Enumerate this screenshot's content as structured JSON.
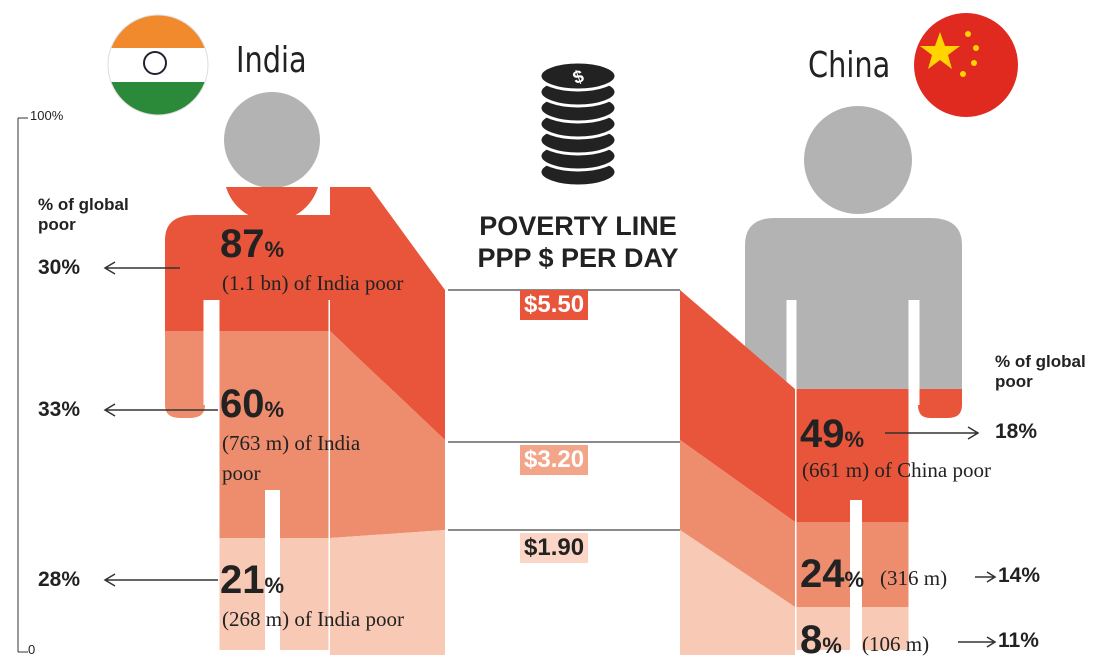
{
  "axis": {
    "top": "100%",
    "bottom": "0"
  },
  "unit": "%",
  "global_label": "% of global poor",
  "center": {
    "heading": [
      "POVERTY LINE",
      "PPP $ PER DAY"
    ],
    "lines": [
      "$5.50",
      "$3.20",
      "$1.90"
    ]
  },
  "india": {
    "name": "India",
    "levels": [
      {
        "share": "87",
        "detail": "(1.1 bn) of India poor",
        "global": "30%"
      },
      {
        "share": "60",
        "detail": "(763 m) of India poor",
        "global": "33%"
      },
      {
        "share": "21",
        "detail": "(268 m) of India poor",
        "global": "28%"
      }
    ]
  },
  "china": {
    "name": "China",
    "levels": [
      {
        "share": "49",
        "detail": "(661 m) of China poor",
        "global": "18%"
      },
      {
        "share": "24",
        "detail": "(316 m)",
        "global": "14%"
      },
      {
        "share": "8",
        "detail": "(106 m)",
        "global": "11%"
      }
    ]
  }
}
